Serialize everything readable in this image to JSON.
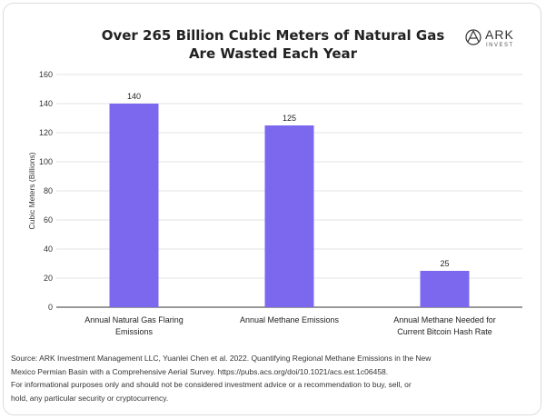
{
  "header": {
    "title_line1": "Over 265 Billion Cubic Meters of Natural Gas",
    "title_line2": "Are Wasted Each Year"
  },
  "logo": {
    "name": "ARK",
    "sub": "INVEST",
    "icon": "ark-logo-icon"
  },
  "chart_data": {
    "type": "bar",
    "categories": [
      [
        "Annual Natural Gas Flaring",
        "Emissions"
      ],
      [
        "Annual Methane Emissions"
      ],
      [
        "Annual Methane Needed for",
        "Current Bitcoin Hash Rate"
      ]
    ],
    "values": [
      140,
      125,
      25
    ],
    "data_labels": [
      "140",
      "125",
      "25"
    ],
    "ylabel": "Cubic Meters (Billions)",
    "ylim": [
      0,
      160
    ],
    "yticks": [
      0,
      20,
      40,
      60,
      80,
      100,
      120,
      140,
      160
    ],
    "grid": true,
    "colors": {
      "bar": "#7B68EE",
      "grid": "#e3e3e3",
      "axis": "#333333"
    }
  },
  "footer": {
    "source_line1": "Source: ARK Investment Management LLC, Yuanlei Chen et al. 2022. Quantifying Regional Methane Emissions in the New",
    "source_line2": "Mexico Permian Basin with a Comprehensive Aerial Survey. https://pubs.acs.org/doi/10.1021/acs.est.1c06458.",
    "disclaimer_line1": "For informational purposes only and should not be considered investment advice or a recommendation to buy, sell, or",
    "disclaimer_line2": "hold, any particular security or cryptocurrency."
  }
}
